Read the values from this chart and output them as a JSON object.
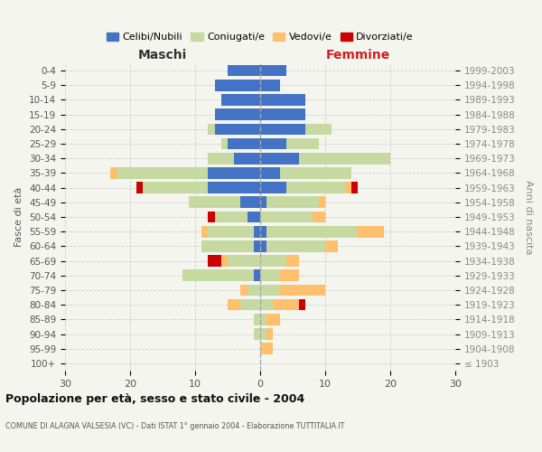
{
  "age_groups": [
    "100+",
    "95-99",
    "90-94",
    "85-89",
    "80-84",
    "75-79",
    "70-74",
    "65-69",
    "60-64",
    "55-59",
    "50-54",
    "45-49",
    "40-44",
    "35-39",
    "30-34",
    "25-29",
    "20-24",
    "15-19",
    "10-14",
    "5-9",
    "0-4"
  ],
  "birth_years": [
    "≤ 1903",
    "1904-1908",
    "1909-1913",
    "1914-1918",
    "1919-1923",
    "1924-1928",
    "1929-1933",
    "1934-1938",
    "1939-1943",
    "1944-1948",
    "1949-1953",
    "1954-1958",
    "1959-1963",
    "1964-1968",
    "1969-1973",
    "1974-1978",
    "1979-1983",
    "1984-1988",
    "1989-1993",
    "1994-1998",
    "1999-2003"
  ],
  "maschi": {
    "celibi": [
      0,
      0,
      0,
      0,
      0,
      0,
      1,
      0,
      1,
      1,
      2,
      3,
      8,
      8,
      4,
      5,
      7,
      7,
      6,
      7,
      5
    ],
    "coniugati": [
      0,
      0,
      1,
      1,
      3,
      2,
      11,
      5,
      8,
      7,
      5,
      8,
      10,
      14,
      4,
      1,
      1,
      0,
      0,
      0,
      0
    ],
    "vedovi": [
      0,
      0,
      0,
      0,
      2,
      1,
      0,
      1,
      0,
      1,
      0,
      0,
      0,
      1,
      0,
      0,
      0,
      0,
      0,
      0,
      0
    ],
    "divorziati": [
      0,
      0,
      0,
      0,
      0,
      0,
      0,
      2,
      0,
      0,
      1,
      0,
      1,
      0,
      0,
      0,
      0,
      0,
      0,
      0,
      0
    ]
  },
  "femmine": {
    "nubili": [
      0,
      0,
      0,
      0,
      0,
      0,
      0,
      0,
      1,
      1,
      0,
      1,
      4,
      3,
      6,
      4,
      7,
      7,
      7,
      3,
      4
    ],
    "coniugate": [
      0,
      0,
      1,
      1,
      2,
      3,
      3,
      4,
      9,
      14,
      8,
      8,
      9,
      11,
      14,
      5,
      4,
      0,
      0,
      0,
      0
    ],
    "vedove": [
      0,
      2,
      1,
      2,
      4,
      7,
      3,
      2,
      2,
      4,
      2,
      1,
      1,
      0,
      0,
      0,
      0,
      0,
      0,
      0,
      0
    ],
    "divorziate": [
      0,
      0,
      0,
      0,
      1,
      0,
      0,
      0,
      0,
      0,
      0,
      0,
      1,
      0,
      0,
      0,
      0,
      0,
      0,
      0,
      0
    ]
  },
  "colors": {
    "celibi": "#4472c4",
    "coniugati": "#c5d9a0",
    "vedovi": "#ffc06e",
    "divorziati": "#cc0000"
  },
  "xlim": 30,
  "title": "Popolazione per età, sesso e stato civile - 2004",
  "subtitle": "COMUNE DI ALAGNA VALSESIA (VC) - Dati ISTAT 1° gennaio 2004 - Elaborazione TUTTITALIA.IT",
  "ylabel_left": "Fasce di età",
  "ylabel_right": "Anni di nascita",
  "legend_labels": [
    "Celibi/Nubili",
    "Coniugati/e",
    "Vedovi/e",
    "Divorziati/e"
  ],
  "maschi_label": "Maschi",
  "femmine_label": "Femmine",
  "bg_color": "#f5f5f0"
}
